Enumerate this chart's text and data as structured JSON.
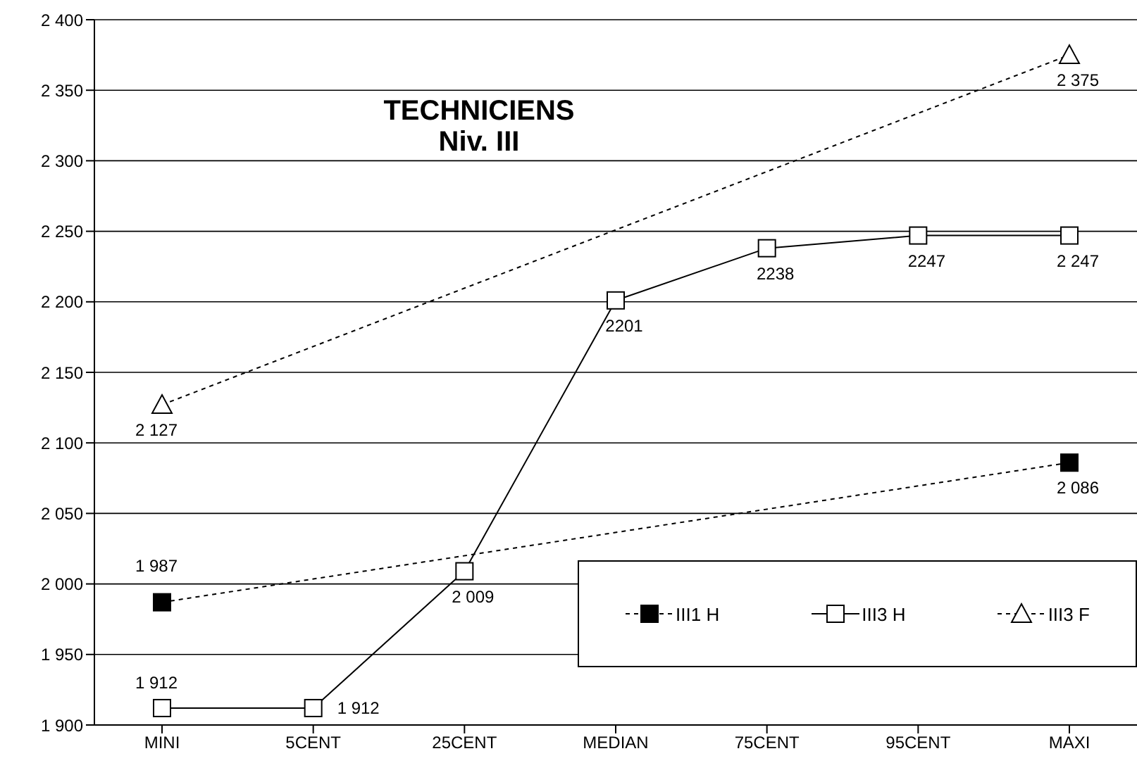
{
  "chart_data": {
    "type": "line",
    "title": "TECHNICIENS",
    "subtitle": "Niv. III",
    "categories": [
      "MINI",
      "5CENT",
      "25CENT",
      "MEDIAN",
      "75CENT",
      "95CENT",
      "MAXI"
    ],
    "series": [
      {
        "name": "III1 H",
        "color": "#000000",
        "marker": "square",
        "line_style": "dotted",
        "values": [
          1987,
          null,
          null,
          null,
          null,
          null,
          2086
        ],
        "value_labels": [
          "1 987",
          null,
          null,
          null,
          null,
          null,
          "2 086"
        ]
      },
      {
        "name": "III3 H",
        "color": "#000000",
        "marker": "square",
        "line_style": "solid",
        "values": [
          1912,
          1912,
          2009,
          2201,
          2238,
          2247,
          2247
        ],
        "value_labels": [
          "1 912",
          "1 912",
          "2 009",
          "2201",
          "2238",
          "2247",
          "2 247"
        ]
      },
      {
        "name": "III3 F",
        "color": "#000000",
        "marker": "triangle",
        "line_style": "dotted",
        "values": [
          2127,
          null,
          null,
          null,
          null,
          null,
          2375
        ],
        "value_labels": [
          "2 127",
          null,
          null,
          null,
          null,
          null,
          "2 375"
        ]
      }
    ],
    "ylim": [
      1900,
      2400
    ],
    "yticks": [
      {
        "value": 1900,
        "label": "1 900"
      },
      {
        "value": 1950,
        "label": "1 950"
      },
      {
        "value": 2000,
        "label": "2 000"
      },
      {
        "value": 2050,
        "label": "2 050"
      },
      {
        "value": 2100,
        "label": "2 100"
      },
      {
        "value": 2150,
        "label": "2 150"
      },
      {
        "value": 2200,
        "label": "2 200"
      },
      {
        "value": 2250,
        "label": "2 250"
      },
      {
        "value": 2300,
        "label": "2 300"
      },
      {
        "value": 2350,
        "label": "2 350"
      },
      {
        "value": 2400,
        "label": "2 400"
      }
    ],
    "grid": "y",
    "legend": "bottom right"
  }
}
